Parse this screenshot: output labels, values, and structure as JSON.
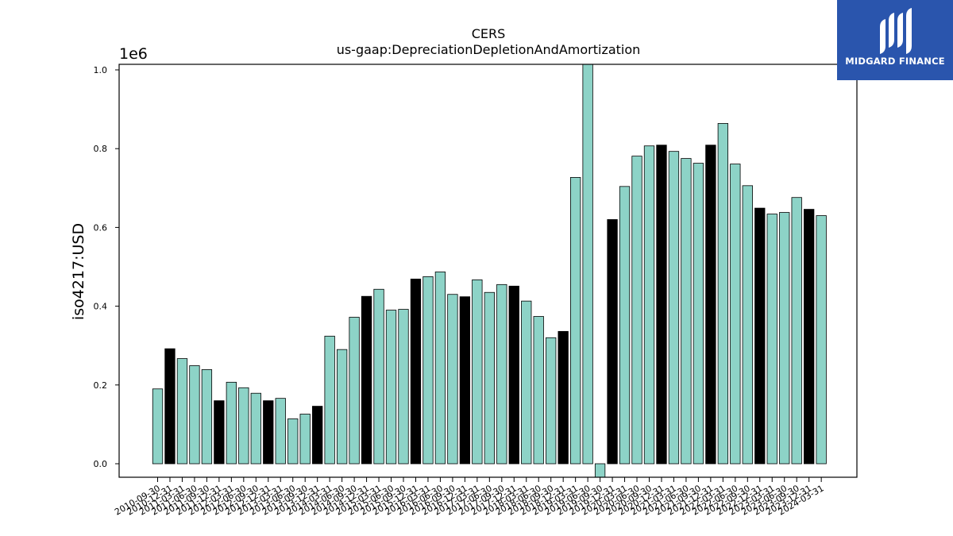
{
  "logo": {
    "text": "MIDGARD FINANCE"
  },
  "chart_data": {
    "type": "bar",
    "title": "CERS",
    "subtitle": "us-gaap:DepreciationDepletionAndAmortization",
    "ylabel": "iso4217:USD",
    "offset_text": "1e6",
    "scale": 1000000,
    "ylim": [
      -0.035,
      1.0
    ],
    "yticks": [
      "0.0",
      "0.2",
      "0.4",
      "0.6",
      "0.8",
      "1.0"
    ],
    "colors": {
      "quarter": "#8dd3c7",
      "annual": "#000000",
      "edge": "#000000"
    },
    "categories": [
      "2010-09-30",
      "2010-12-31",
      "2011-03-31",
      "2011-06-30",
      "2011-09-30",
      "2011-12-31",
      "2012-03-31",
      "2012-06-30",
      "2012-09-30",
      "2012-12-31",
      "2013-03-31",
      "2013-06-30",
      "2013-09-30",
      "2013-12-31",
      "2014-03-31",
      "2014-06-30",
      "2014-09-30",
      "2014-12-31",
      "2015-03-31",
      "2015-06-30",
      "2015-09-30",
      "2015-12-31",
      "2016-03-31",
      "2016-06-30",
      "2016-09-30",
      "2016-12-31",
      "2017-03-31",
      "2017-06-30",
      "2017-09-30",
      "2017-12-31",
      "2018-03-31",
      "2018-06-30",
      "2018-09-30",
      "2018-12-31",
      "2019-03-31",
      "2019-06-30",
      "2019-09-30",
      "2019-12-31",
      "2020-03-31",
      "2020-06-30",
      "2020-09-30",
      "2020-12-31",
      "2021-03-31",
      "2021-06-30",
      "2021-09-30",
      "2021-12-31",
      "2022-03-31",
      "2022-06-30",
      "2022-09-30",
      "2022-12-31",
      "2023-03-31",
      "2023-06-30",
      "2023-09-30",
      "2023-12-31",
      "2024-03-31"
    ],
    "values": [
      0.19,
      0.292,
      0.267,
      0.249,
      0.239,
      0.16,
      0.207,
      0.193,
      0.179,
      0.16,
      0.166,
      0.114,
      0.126,
      0.146,
      0.324,
      0.29,
      0.372,
      0.425,
      0.443,
      0.39,
      0.392,
      0.469,
      0.475,
      0.487,
      0.43,
      0.424,
      0.467,
      0.435,
      0.455,
      0.451,
      0.413,
      0.374,
      0.32,
      0.336,
      0.727,
      1.02,
      -0.035,
      0.62,
      0.704,
      0.781,
      0.807,
      0.809,
      0.793,
      0.775,
      0.763,
      0.809,
      0.864,
      0.761,
      0.706,
      0.649,
      0.634,
      0.638,
      0.676,
      0.646,
      0.63
    ],
    "annual": [
      false,
      true,
      false,
      false,
      false,
      true,
      false,
      false,
      false,
      true,
      false,
      false,
      false,
      true,
      false,
      false,
      false,
      true,
      false,
      false,
      false,
      true,
      false,
      false,
      false,
      true,
      false,
      false,
      false,
      true,
      false,
      false,
      false,
      true,
      false,
      false,
      false,
      true,
      false,
      false,
      false,
      true,
      false,
      false,
      false,
      true,
      false,
      false,
      false,
      true,
      false,
      false,
      false,
      true,
      false
    ]
  }
}
